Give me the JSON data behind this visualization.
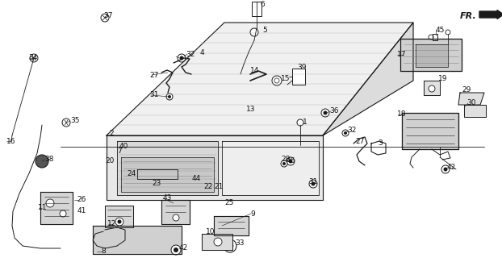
{
  "bg_color": "#ffffff",
  "line_color": "#1a1a1a",
  "fig_width": 6.22,
  "fig_height": 3.2,
  "dpi": 100,
  "label_size": 6.5,
  "label_color": "#111111"
}
